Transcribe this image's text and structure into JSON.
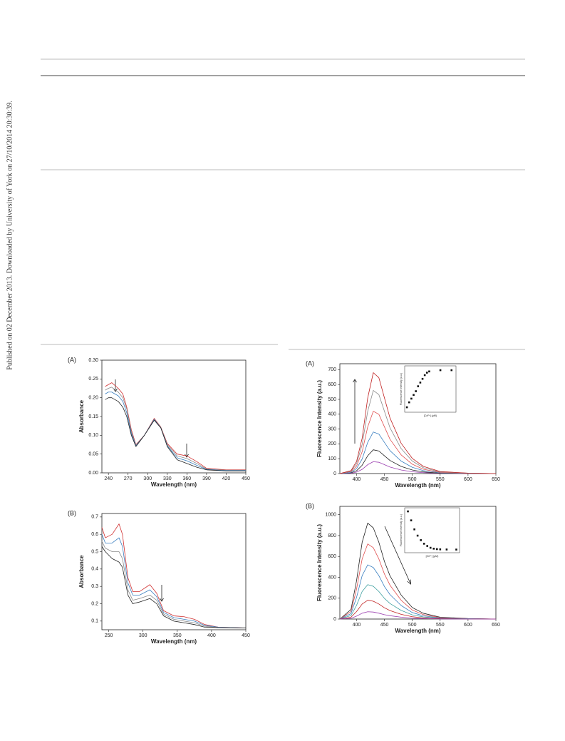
{
  "side_note": "Published on 02 December 2013. Downloaded by University of York on 27/10/2014 20:30:39.",
  "chart_data": [
    {
      "type": "line",
      "panel_label": "(A)",
      "x_label": "Wavelength (nm)",
      "y_label": "Absorbance",
      "x": [
        235,
        240,
        245,
        255,
        262,
        268,
        275,
        282,
        295,
        310,
        320,
        330,
        345,
        360,
        375,
        390,
        420,
        450
      ],
      "xlim": [
        230,
        450
      ],
      "xticks": [
        240,
        270,
        300,
        330,
        360,
        390,
        420,
        450
      ],
      "ylim": [
        0,
        0.3
      ],
      "yticks": [
        {
          "value": 0,
          "label": "0.00"
        },
        0.05,
        {
          "value": 0.1,
          "label": "0.10"
        },
        0.15,
        {
          "value": 0.2,
          "label": "0.20"
        },
        0.25,
        {
          "value": 0.3,
          "label": "0.30"
        }
      ],
      "series": [
        {
          "color": "#d03030",
          "values": [
            0.23,
            0.235,
            0.24,
            0.225,
            0.21,
            0.175,
            0.115,
            0.075,
            0.1,
            0.145,
            0.122,
            0.078,
            0.05,
            0.045,
            0.03,
            0.012,
            0.008,
            0.008
          ]
        },
        {
          "color": "#8a8a8a",
          "values": [
            0.22,
            0.225,
            0.228,
            0.215,
            0.2,
            0.17,
            0.11,
            0.073,
            0.1,
            0.143,
            0.121,
            0.075,
            0.045,
            0.038,
            0.025,
            0.01,
            0.007,
            0.007
          ]
        },
        {
          "color": "#3a7fc0",
          "values": [
            0.21,
            0.215,
            0.215,
            0.205,
            0.19,
            0.16,
            0.105,
            0.072,
            0.1,
            0.142,
            0.12,
            0.072,
            0.04,
            0.032,
            0.02,
            0.009,
            0.006,
            0.006
          ]
        },
        {
          "color": "#222222",
          "values": [
            0.195,
            0.2,
            0.2,
            0.19,
            0.175,
            0.15,
            0.1,
            0.07,
            0.1,
            0.14,
            0.12,
            0.07,
            0.035,
            0.025,
            0.015,
            0.008,
            0.005,
            0.005
          ]
        }
      ]
    },
    {
      "type": "line",
      "panel_label": "(B)",
      "x_label": "Wavelength (nm)",
      "y_label": "Absorbance",
      "x": [
        240,
        245,
        255,
        265,
        270,
        278,
        285,
        295,
        310,
        320,
        330,
        345,
        360,
        375,
        390,
        410,
        450
      ],
      "xlim": [
        240,
        450
      ],
      "xticks": [
        250,
        300,
        350,
        400,
        450
      ],
      "ylim": [
        0.05,
        0.72
      ],
      "yticks": [
        0.1,
        0.2,
        0.3,
        0.4,
        0.5,
        0.6,
        0.7
      ],
      "series": [
        {
          "color": "#d03030",
          "values": [
            0.64,
            0.58,
            0.6,
            0.66,
            0.6,
            0.35,
            0.27,
            0.27,
            0.31,
            0.26,
            0.16,
            0.13,
            0.125,
            0.11,
            0.08,
            0.065,
            0.06
          ]
        },
        {
          "color": "#3a7fc0",
          "values": [
            0.6,
            0.55,
            0.55,
            0.58,
            0.53,
            0.32,
            0.25,
            0.25,
            0.28,
            0.24,
            0.15,
            0.12,
            0.11,
            0.1,
            0.075,
            0.065,
            0.06
          ]
        },
        {
          "color": "#8a8a8a",
          "values": [
            0.56,
            0.52,
            0.5,
            0.5,
            0.46,
            0.28,
            0.22,
            0.23,
            0.25,
            0.22,
            0.14,
            0.11,
            0.1,
            0.09,
            0.07,
            0.063,
            0.06
          ]
        },
        {
          "color": "#222222",
          "values": [
            0.53,
            0.5,
            0.46,
            0.44,
            0.41,
            0.25,
            0.2,
            0.21,
            0.23,
            0.2,
            0.13,
            0.1,
            0.09,
            0.08,
            0.065,
            0.062,
            0.06
          ]
        }
      ]
    },
    {
      "type": "line",
      "panel_label": "(A)",
      "x_label": "Wavelength (nm)",
      "y_label": "Fluorescence Intensity (a.u.)",
      "x": [
        370,
        390,
        400,
        410,
        420,
        430,
        440,
        450,
        460,
        480,
        500,
        520,
        550,
        600,
        650
      ],
      "xlim": [
        370,
        650
      ],
      "xticks": [
        400,
        450,
        500,
        550,
        600,
        650
      ],
      "ylim": [
        0,
        740
      ],
      "yticks": [
        0,
        100,
        200,
        300,
        400,
        500,
        600,
        700
      ],
      "series": [
        {
          "color": "#9b3fb0",
          "values": [
            0,
            2,
            10,
            28,
            60,
            80,
            76,
            60,
            44,
            24,
            12,
            6,
            2,
            0,
            0
          ]
        },
        {
          "color": "#222222",
          "values": [
            0,
            5,
            19,
            56,
            120,
            160,
            152,
            120,
            88,
            48,
            24,
            11,
            3,
            1,
            0
          ]
        },
        {
          "color": "#3a7fc0",
          "values": [
            0,
            8,
            34,
            98,
            210,
            280,
            266,
            210,
            154,
            84,
            42,
            20,
            6,
            1,
            0
          ]
        },
        {
          "color": "#e05050",
          "values": [
            0,
            13,
            50,
            147,
            315,
            420,
            399,
            315,
            231,
            126,
            63,
            29,
            8,
            2,
            0
          ]
        },
        {
          "color": "#8a8a8a",
          "values": [
            0,
            17,
            67,
            196,
            420,
            560,
            532,
            420,
            308,
            168,
            84,
            39,
            11,
            3,
            0
          ]
        },
        {
          "color": "#c02020",
          "values": [
            0,
            20,
            82,
            238,
            510,
            680,
            646,
            510,
            374,
            204,
            102,
            48,
            14,
            3,
            0
          ]
        }
      ],
      "inset": {
        "type": "scatter",
        "x_label": "[Cd²⁺] (μM)",
        "y_label": "Fluorescence Intensity (a.u.)",
        "x": [
          0,
          1,
          2,
          3,
          4,
          5,
          6,
          7,
          8,
          9,
          10,
          15,
          20
        ],
        "values": [
          80,
          160,
          220,
          280,
          340,
          420,
          480,
          540,
          600,
          640,
          660,
          680,
          680
        ],
        "xlim": [
          -1,
          22
        ],
        "ylim": [
          0,
          750
        ],
        "color": "#111111"
      }
    },
    {
      "type": "line",
      "panel_label": "(B)",
      "x_label": "Wavelength (nm)",
      "y_label": "Fluorescence Intensity (a.u.)",
      "x": [
        370,
        390,
        400,
        410,
        420,
        430,
        440,
        450,
        460,
        480,
        500,
        520,
        550,
        600,
        650
      ],
      "xlim": [
        370,
        650
      ],
      "xticks": [
        400,
        450,
        500,
        550,
        600,
        650
      ],
      "ylim": [
        0,
        1080
      ],
      "yticks": [
        0,
        200,
        400,
        600,
        800,
        1000
      ],
      "series": [
        {
          "color": "#222222",
          "values": [
            0,
            92,
            368,
            736,
            920,
            874,
            736,
            552,
            414,
            230,
            110,
            55,
            18,
            5,
            0
          ]
        },
        {
          "color": "#e05050",
          "values": [
            0,
            72,
            288,
            576,
            720,
            684,
            576,
            432,
            324,
            180,
            86,
            43,
            14,
            4,
            0
          ]
        },
        {
          "color": "#3a7fc0",
          "values": [
            0,
            52,
            208,
            416,
            520,
            494,
            416,
            312,
            234,
            130,
            62,
            31,
            10,
            3,
            0
          ]
        },
        {
          "color": "#40a0a0",
          "values": [
            0,
            33,
            132,
            264,
            330,
            314,
            264,
            198,
            149,
            83,
            40,
            20,
            7,
            2,
            0
          ]
        },
        {
          "color": "#c02020",
          "values": [
            0,
            18,
            72,
            144,
            180,
            171,
            144,
            108,
            81,
            45,
            22,
            11,
            4,
            1,
            0
          ]
        },
        {
          "color": "#9b3fb0",
          "values": [
            0,
            7,
            28,
            56,
            70,
            67,
            56,
            42,
            32,
            18,
            8,
            4,
            1,
            0,
            0
          ]
        }
      ],
      "inset": {
        "type": "scatter",
        "x_label": "[Zn²⁺] (μM)",
        "y_label": "Fluorescence Intensity (a.u.)",
        "x": [
          0,
          1,
          2,
          3,
          4,
          5,
          6,
          7,
          8,
          9,
          10,
          12,
          15
        ],
        "values": [
          920,
          720,
          520,
          380,
          280,
          200,
          150,
          110,
          90,
          80,
          75,
          72,
          70
        ],
        "xlim": [
          -1,
          16
        ],
        "ylim": [
          0,
          1000
        ],
        "color": "#111111"
      }
    }
  ]
}
